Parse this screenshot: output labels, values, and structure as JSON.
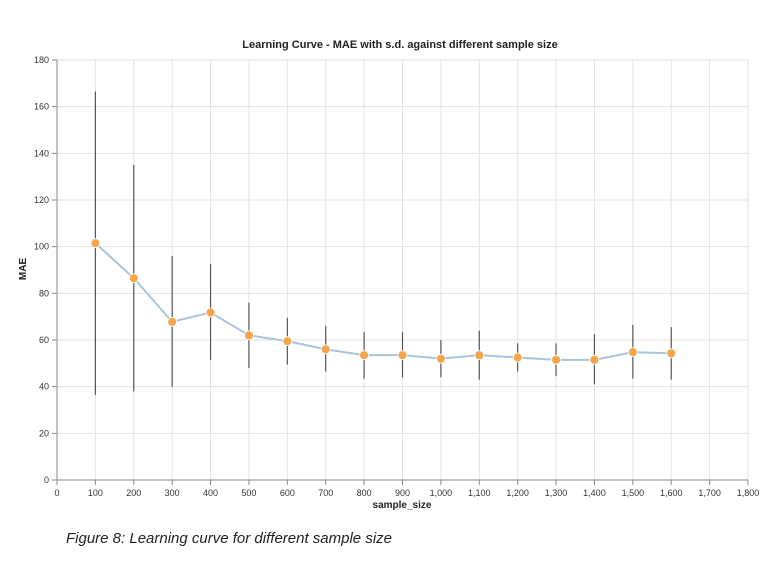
{
  "caption": "Figure 8: Learning curve for different sample size",
  "chart_data": {
    "type": "line",
    "title": "Learning Curve - MAE with s.d. against different sample size",
    "xlabel": "sample_size",
    "ylabel": "MAE",
    "xlim": [
      0,
      1800
    ],
    "ylim": [
      0,
      180
    ],
    "x_ticks": [
      0,
      100,
      200,
      300,
      400,
      500,
      600,
      700,
      800,
      900,
      1000,
      1100,
      1200,
      1300,
      1400,
      1500,
      1600,
      1700,
      1800
    ],
    "x_tick_labels": [
      "0",
      "100",
      "200",
      "300",
      "400",
      "500",
      "600",
      "700",
      "800",
      "900",
      "1,000",
      "1,100",
      "1,200",
      "1,300",
      "1,400",
      "1,500",
      "1,600",
      "1,700",
      "1,800"
    ],
    "y_ticks": [
      0,
      20,
      40,
      60,
      80,
      100,
      120,
      140,
      160,
      180
    ],
    "y_tick_labels": [
      "0",
      "20",
      "40",
      "60",
      "80",
      "100",
      "120",
      "140",
      "160",
      "180"
    ],
    "grid": true,
    "series": [
      {
        "x": [
          100,
          200,
          300,
          400,
          500,
          600,
          700,
          800,
          900,
          1000,
          1100,
          1200,
          1300,
          1400,
          1500,
          1600
        ],
        "y": [
          101.5,
          86.5,
          67.8,
          71.8,
          62.0,
          59.5,
          56.0,
          53.5,
          53.5,
          52.0,
          53.5,
          52.5,
          51.5,
          51.5,
          54.8,
          54.3
        ],
        "err_low": [
          36.5,
          38.0,
          40.0,
          51.5,
          48.0,
          49.5,
          46.5,
          43.5,
          44.0,
          44.0,
          43.0,
          46.5,
          44.5,
          41.0,
          43.5,
          43.0
        ],
        "err_high": [
          166.5,
          135.0,
          96.0,
          92.5,
          76.0,
          69.5,
          66.0,
          63.5,
          63.5,
          60.0,
          64.0,
          58.5,
          58.5,
          62.5,
          66.5,
          65.5
        ],
        "line_color": "#a9c4dc",
        "point_color": "#f5a54a",
        "errorbar_color": "#555555"
      }
    ]
  }
}
